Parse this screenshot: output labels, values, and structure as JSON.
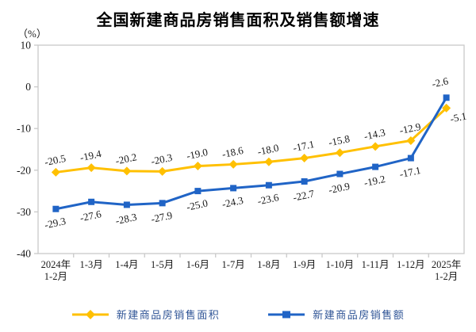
{
  "title": "全国新建商品房销售面积及销售额增速",
  "unit_label": "（%）",
  "chart_data": {
    "type": "line",
    "title": "全国新建商品房销售面积及销售额增速",
    "ylabel": "（%）",
    "xlabel": "",
    "ylim": [
      -40,
      10
    ],
    "yticks": [
      10,
      0,
      -10,
      -20,
      -30,
      -40
    ],
    "grid": false,
    "legend_position": "bottom",
    "label_rotation": -12,
    "categories": [
      "2024年\n1-2月",
      "1-3月",
      "1-4月",
      "1-5月",
      "1-6月",
      "1-7月",
      "1-8月",
      "1-9月",
      "1-10月",
      "1-11月",
      "1-12月",
      "2025年\n1-2月"
    ],
    "series": [
      {
        "name": "新建商品房销售面积",
        "color": "#FFC000",
        "marker": "diamond",
        "values": [
          -20.5,
          -19.4,
          -20.2,
          -20.3,
          -19.0,
          -18.6,
          -18.0,
          -17.1,
          -15.8,
          -14.3,
          -12.9,
          -5.1
        ],
        "label_default": {
          "dx": 0,
          "dy": -11
        },
        "label_overrides": {
          "11": {
            "dx": 16,
            "dy": 16
          }
        }
      },
      {
        "name": "新建商品房销售额",
        "color": "#2064C6",
        "marker": "square",
        "values": [
          -29.3,
          -27.6,
          -28.3,
          -27.9,
          -25.0,
          -24.3,
          -23.6,
          -22.7,
          -20.9,
          -19.2,
          -17.1,
          -2.6
        ],
        "label_default": {
          "dx": 0,
          "dy": 22
        },
        "label_overrides": {
          "11": {
            "dx": -7,
            "dy": -15
          }
        }
      }
    ],
    "axis_color": "#C9C9C9",
    "tick_color": "#C9C9C9",
    "label_color": "#1a1a1a",
    "legend_text_color": "#2F5496"
  }
}
